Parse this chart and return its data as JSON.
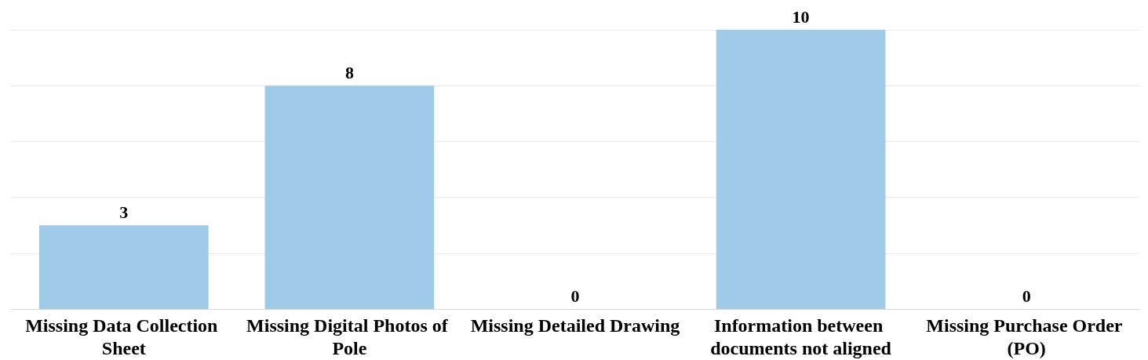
{
  "chart_data": {
    "type": "bar",
    "categories": [
      "Missing Data Collection Sheet",
      "Missing Digital Photos of Pole",
      "Missing Detailed Drawing",
      "Information between documents not aligned",
      "Missing Purchase Order (PO)"
    ],
    "values": [
      3,
      8,
      0,
      10,
      0
    ],
    "color": "#9fcae8",
    "ylim": [
      0,
      10
    ],
    "yticks": [
      {
        "value": 0,
        "label": null
      },
      {
        "value": 2,
        "label": null
      },
      {
        "value": 4,
        "label": null
      },
      {
        "value": 6,
        "label": null
      },
      {
        "value": 8,
        "label": null
      },
      {
        "value": 10,
        "label": null
      }
    ],
    "grid": "y",
    "data_labels": true,
    "tick_labels": "x"
  }
}
